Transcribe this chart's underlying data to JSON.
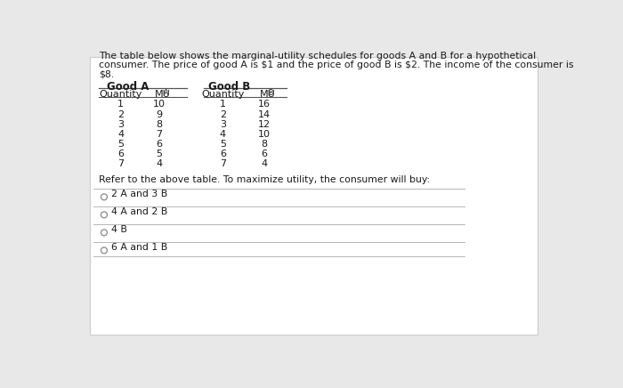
{
  "intro_line1": "The table below shows the marginal-utility schedules for goods A and B for a hypothetical",
  "intro_line2": "consumer. The price of good A is $1 and the price of good B is $2. The income of the consumer is",
  "intro_line3": "$8.",
  "good_a_header": "Good A",
  "good_b_header": "Good B",
  "qty_a": [
    1,
    2,
    3,
    4,
    5,
    6,
    7
  ],
  "mu_a": [
    10,
    9,
    8,
    7,
    6,
    5,
    4
  ],
  "qty_b": [
    1,
    2,
    3,
    4,
    5,
    6,
    7
  ],
  "mu_b": [
    16,
    14,
    12,
    10,
    8,
    6,
    4
  ],
  "refer_text": "Refer to the above table. To maximize utility, the consumer will buy:",
  "options": [
    "2 A and 3 B",
    "4 A and 2 B",
    "4 B",
    "6 A and 1 B"
  ],
  "bg_color": "#e8e8e8",
  "card_color": "#ffffff",
  "text_color": "#1a1a1a",
  "line_color": "#aaaaaa",
  "table_line_color": "#555555"
}
